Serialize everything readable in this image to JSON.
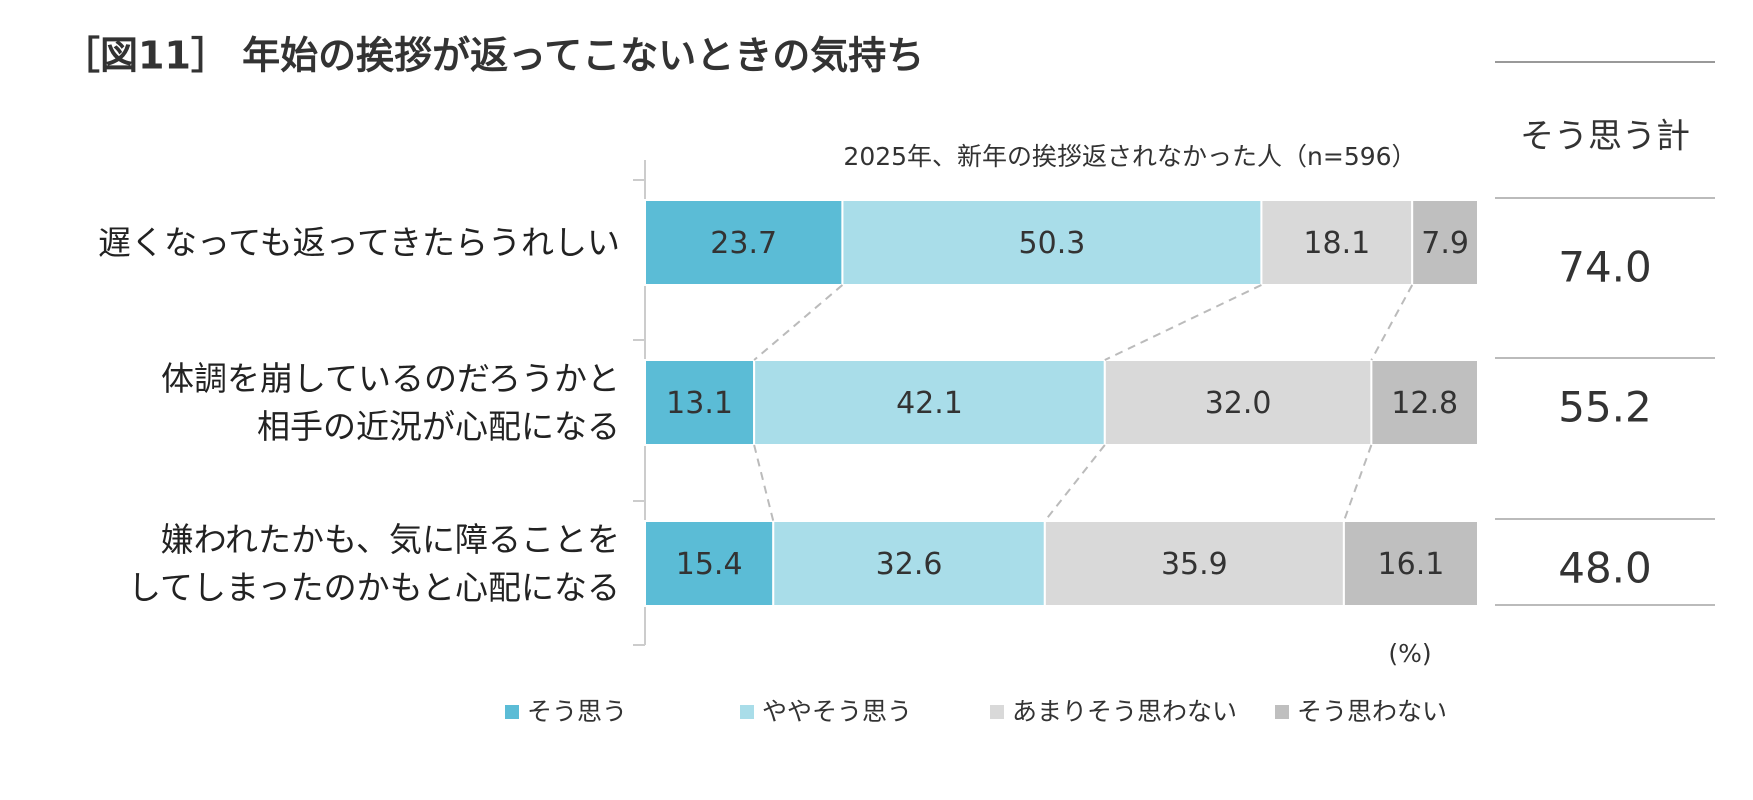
{
  "chart_data": {
    "type": "stacked-bar-horizontal",
    "title": "［図11］ 年始の挨拶が返ってこないときの気持ち",
    "subtitle": "2025年、新年の挨拶返されなかった人（n=596）",
    "unit": "(%)",
    "categories": [
      "遅くなっても返ってきたらうれしい",
      "体調を崩しているのだろうかと\n相手の近況が心配になる",
      "嫌われたかも、気に障ることを\nしてしまったのかもと心配になる"
    ],
    "xlim": [
      0,
      100
    ],
    "series": [
      {
        "name": "そう思う",
        "color": "#5bbcd6",
        "values": [
          23.7,
          13.1,
          15.4
        ]
      },
      {
        "name": "ややそう思う",
        "color": "#a9dde9",
        "values": [
          50.3,
          42.1,
          32.6
        ]
      },
      {
        "name": "あまりそう思わない",
        "color": "#d9d9d9",
        "values": [
          18.1,
          32.0,
          35.9
        ],
        "value_labels": [
          "18.1",
          "32.0",
          "35.9"
        ]
      },
      {
        "name": "そう思わない",
        "color": "#bfbfbf",
        "values": [
          7.9,
          12.8,
          16.1
        ]
      }
    ],
    "summary": {
      "title": "そう思う計",
      "values": [
        74.0,
        55.2,
        48.0
      ],
      "value_labels": [
        "74.0",
        "55.2",
        "48.0"
      ]
    }
  }
}
